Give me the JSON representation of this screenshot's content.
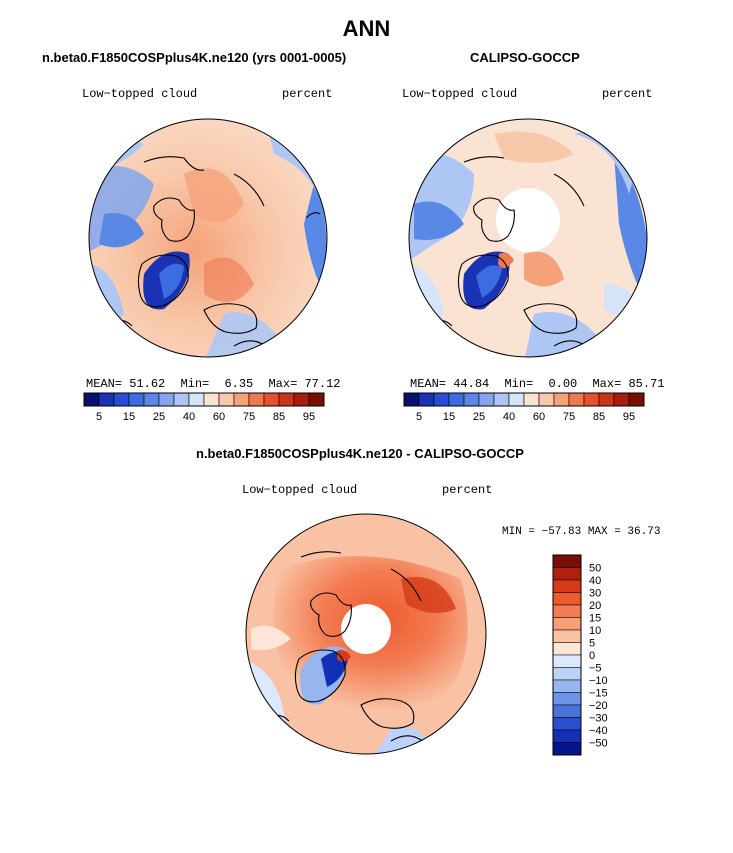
{
  "page": {
    "title": "ANN"
  },
  "panels": [
    {
      "id": "model",
      "title": "n.beta0.F1850COSPplus4K.ne120 (yrs 0001-0005)",
      "left_label": "Low−topped cloud",
      "right_label": "percent",
      "stats": {
        "mean_label": "MEAN=",
        "mean": "51.62",
        "min_label": "Min=",
        "min": "6.35",
        "max_label": "Max=",
        "max": "77.12"
      }
    },
    {
      "id": "obs",
      "title": "CALIPSO-GOCCP",
      "left_label": "Low−topped cloud",
      "right_label": "percent",
      "stats": {
        "mean_label": "MEAN=",
        "mean": "44.84",
        "min_label": "Min=",
        "min": "0.00",
        "max_label": "Max=",
        "max": "85.71"
      }
    }
  ],
  "diff_panel": {
    "title": "n.beta0.F1850COSPplus4K.ne120 - CALIPSO-GOCCP",
    "left_label": "Low−topped cloud",
    "right_label": "percent",
    "minmax": "MIN = −57.83 MAX =  36.73"
  },
  "chart_data": [
    {
      "type": "heatmap",
      "projection": "north-polar-stereographic",
      "title": "n.beta0.F1850COSPplus4K.ne120 (yrs 0001-0005)",
      "variable": "Low−topped cloud",
      "units": "percent",
      "mean": 51.62,
      "min": 6.35,
      "max": 77.12,
      "colorbar": {
        "orientation": "horizontal",
        "levels": [
          5,
          10,
          15,
          20,
          25,
          30,
          40,
          50,
          60,
          70,
          75,
          80,
          85,
          90,
          95
        ],
        "tick_labels": [
          "5",
          "15",
          "25",
          "40",
          "60",
          "75",
          "85",
          "95"
        ],
        "colors": [
          "#08106e",
          "#1a32b4",
          "#2a4dd6",
          "#3b6de0",
          "#5a88e6",
          "#84a6ee",
          "#aec6f4",
          "#d6e4fa",
          "#fbe3d4",
          "#f8c8aa",
          "#f5a27b",
          "#ef7a52",
          "#e4532d",
          "#cc3416",
          "#a81d0c",
          "#7a0e06"
        ]
      }
    },
    {
      "type": "heatmap",
      "projection": "north-polar-stereographic",
      "title": "CALIPSO-GOCCP",
      "variable": "Low−topped cloud",
      "units": "percent",
      "mean": 44.84,
      "min": 0.0,
      "max": 85.71,
      "colorbar": {
        "orientation": "horizontal",
        "levels": [
          5,
          10,
          15,
          20,
          25,
          30,
          40,
          50,
          60,
          70,
          75,
          80,
          85,
          90,
          95
        ],
        "tick_labels": [
          "5",
          "15",
          "25",
          "40",
          "60",
          "75",
          "85",
          "95"
        ],
        "colors": [
          "#08106e",
          "#1a32b4",
          "#2a4dd6",
          "#3b6de0",
          "#5a88e6",
          "#84a6ee",
          "#aec6f4",
          "#d6e4fa",
          "#fbe3d4",
          "#f8c8aa",
          "#f5a27b",
          "#ef7a52",
          "#e4532d",
          "#cc3416",
          "#a81d0c",
          "#7a0e06"
        ]
      }
    },
    {
      "type": "heatmap",
      "projection": "north-polar-stereographic",
      "title": "n.beta0.F1850COSPplus4K.ne120 - CALIPSO-GOCCP",
      "variable": "Low−topped cloud",
      "units": "percent",
      "min": -57.83,
      "max": 36.73,
      "colorbar": {
        "orientation": "vertical",
        "levels": [
          50,
          40,
          30,
          20,
          15,
          10,
          5,
          0,
          -5,
          -10,
          -15,
          -20,
          -30,
          -40,
          -50
        ],
        "tick_labels": [
          "50",
          "40",
          "30",
          "20",
          "15",
          "10",
          "5",
          "0",
          "−5",
          "−10",
          "−15",
          "−20",
          "−30",
          "−40",
          "−50"
        ],
        "colors": [
          "#7a0e06",
          "#b0200c",
          "#d63a18",
          "#ee5a2e",
          "#f37c52",
          "#f6a079",
          "#f9c2a4",
          "#fde6d8",
          "#dce8fb",
          "#bcd2f6",
          "#97b5ef",
          "#6f93e6",
          "#4a72dc",
          "#2a4ed0",
          "#1230b4",
          "#04148a"
        ]
      }
    }
  ]
}
